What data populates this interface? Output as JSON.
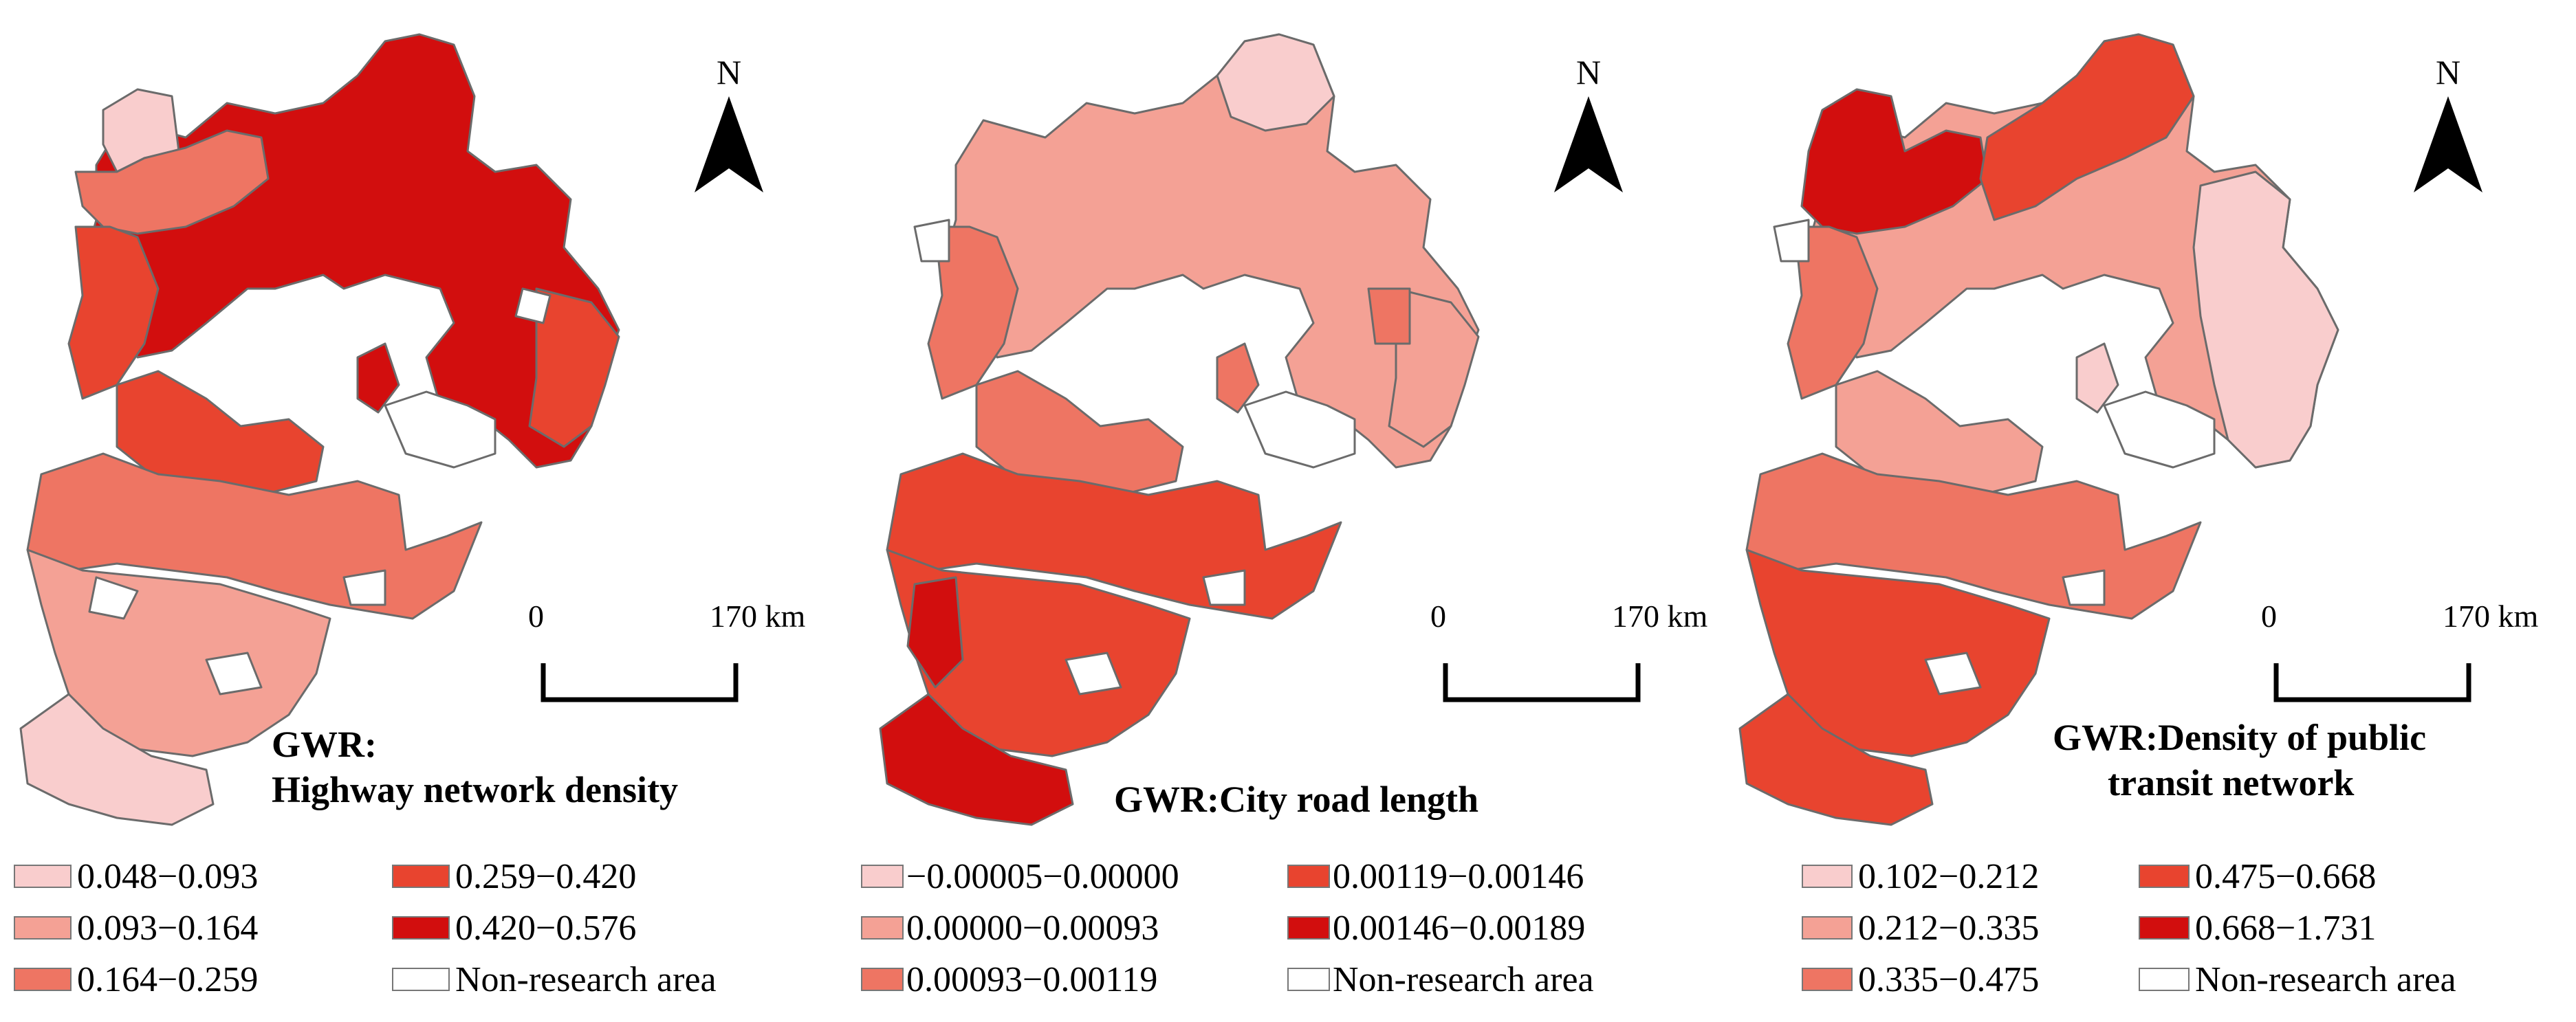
{
  "panels": [
    {
      "title_line1": "GWR:",
      "title_line2": "Highway network density",
      "north_label": "N",
      "scale_start": "0",
      "scale_end": "170 km",
      "legend": [
        {
          "label": "0.048−0.093",
          "color": "#f9cdcd"
        },
        {
          "label": "0.093−0.164",
          "color": "#f4a195"
        },
        {
          "label": "0.164−0.259",
          "color": "#ee7563"
        },
        {
          "label": "0.259−0.420",
          "color": "#e8442f"
        },
        {
          "label": "0.420−0.576",
          "color": "#d20e0e"
        },
        {
          "label": "Non-research area",
          "color": "#ffffff"
        }
      ]
    },
    {
      "title_line1": "GWR:City road length",
      "title_line2": "",
      "north_label": "N",
      "scale_start": "0",
      "scale_end": "170 km",
      "legend": [
        {
          "label": "−0.00005−0.00000",
          "color": "#f9cdcd"
        },
        {
          "label": "0.00000−0.00093",
          "color": "#f4a195"
        },
        {
          "label": "0.00093−0.00119",
          "color": "#ee7563"
        },
        {
          "label": "0.00119−0.00146",
          "color": "#e8442f"
        },
        {
          "label": "0.00146−0.00189",
          "color": "#d20e0e"
        },
        {
          "label": "Non-research area",
          "color": "#ffffff"
        }
      ]
    },
    {
      "title_line1": "GWR:Density of public",
      "title_line2": "transit network",
      "north_label": "N",
      "scale_start": "0",
      "scale_end": "170 km",
      "legend": [
        {
          "label": "0.102−0.212",
          "color": "#f9cdcd"
        },
        {
          "label": "0.212−0.335",
          "color": "#f4a195"
        },
        {
          "label": "0.335−0.475",
          "color": "#ee7563"
        },
        {
          "label": "0.475−0.668",
          "color": "#e8442f"
        },
        {
          "label": "0.668−1.731",
          "color": "#d20e0e"
        },
        {
          "label": "Non-research area",
          "color": "#ffffff"
        }
      ]
    }
  ]
}
